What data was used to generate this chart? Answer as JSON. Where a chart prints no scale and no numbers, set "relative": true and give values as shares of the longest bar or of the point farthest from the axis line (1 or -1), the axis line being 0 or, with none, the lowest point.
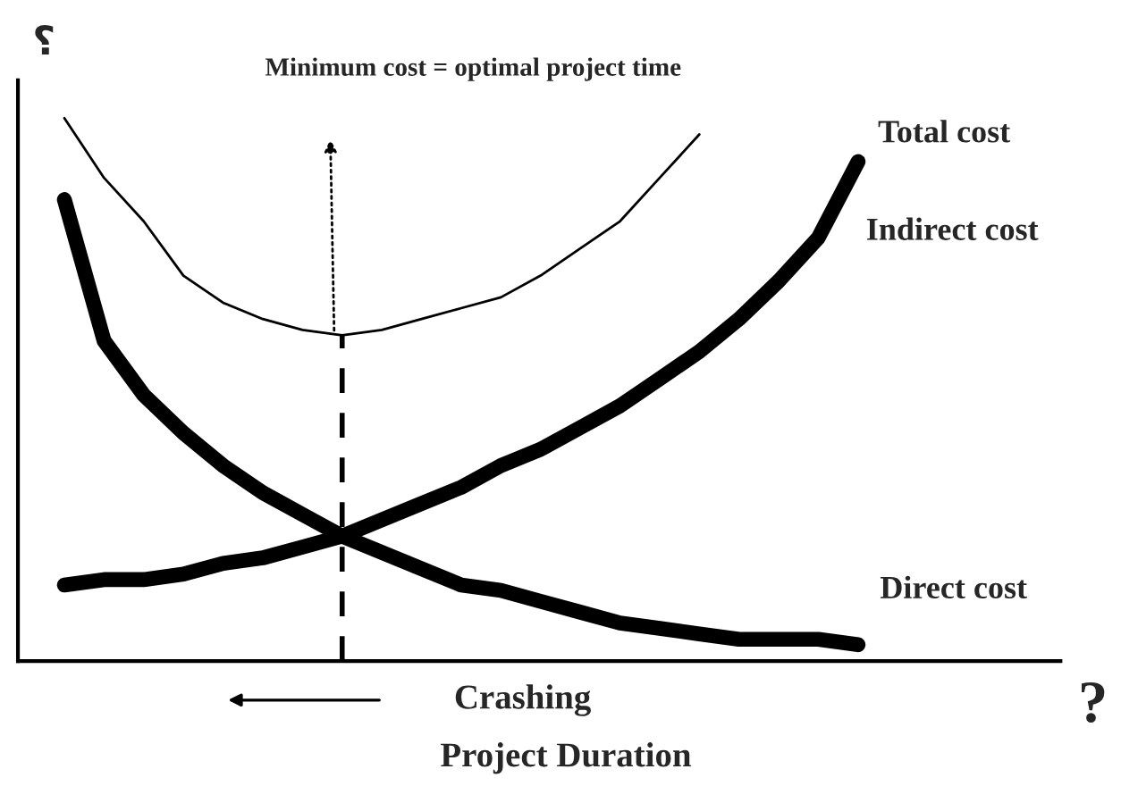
{
  "chart_data": {
    "type": "line",
    "relative": true,
    "ylabel": "؟",
    "xlabel": "Project Duration",
    "categories": [
      null,
      null,
      null,
      null,
      null,
      null,
      null,
      null,
      null,
      null,
      null,
      null,
      null,
      null,
      null,
      null,
      null,
      null,
      null,
      null,
      null
    ],
    "series": [
      {
        "name": "Total cost",
        "color": "#000000",
        "values": [
          1.0,
          0.89,
          0.81,
          0.71,
          0.66,
          0.63,
          0.61,
          0.6,
          0.61,
          0.63,
          0.65,
          0.67,
          0.71,
          0.76,
          0.81,
          0.89,
          0.97,
          null,
          null,
          null,
          null
        ]
      },
      {
        "name": "Indirect cost",
        "color": "#000000",
        "values": [
          0.14,
          0.15,
          0.15,
          0.16,
          0.18,
          0.19,
          0.21,
          0.23,
          0.26,
          0.29,
          0.32,
          0.36,
          0.39,
          0.43,
          0.47,
          0.52,
          0.57,
          0.63,
          0.7,
          0.78,
          0.92
        ]
      },
      {
        "name": "Direct cost",
        "color": "#000000",
        "values": [
          0.85,
          0.59,
          0.49,
          0.42,
          0.36,
          0.31,
          0.27,
          0.23,
          0.2,
          0.17,
          0.14,
          0.13,
          0.11,
          0.09,
          0.07,
          0.06,
          0.05,
          0.04,
          0.04,
          0.04,
          0.03
        ]
      }
    ],
    "annotations": [
      "Minimum cost = optimal project time",
      "Crashing",
      "?"
    ],
    "legend": false
  }
}
